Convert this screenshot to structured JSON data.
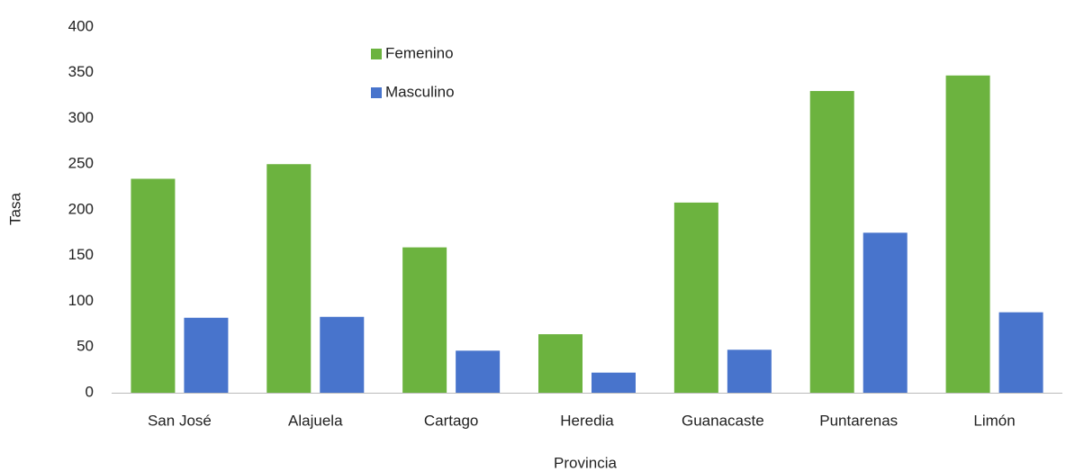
{
  "chart_data": {
    "type": "bar",
    "x_label": "Provincia",
    "y_label": "Tasa",
    "categories": [
      "San José",
      "Alajuela",
      "Cartago",
      "Heredia",
      "Guanacaste",
      "Puntarenas",
      "Limón"
    ],
    "series": [
      {
        "name": "Femenino",
        "color": "#6cb33f",
        "values": [
          234,
          250,
          159,
          64,
          208,
          330,
          347
        ]
      },
      {
        "name": "Masculino",
        "color": "#4874cc",
        "values": [
          82,
          83,
          46,
          22,
          47,
          175,
          88
        ]
      }
    ],
    "ylim": [
      0,
      400
    ],
    "yticks": [
      0,
      50,
      100,
      150,
      200,
      250,
      300,
      350,
      400
    ],
    "grid": false
  }
}
